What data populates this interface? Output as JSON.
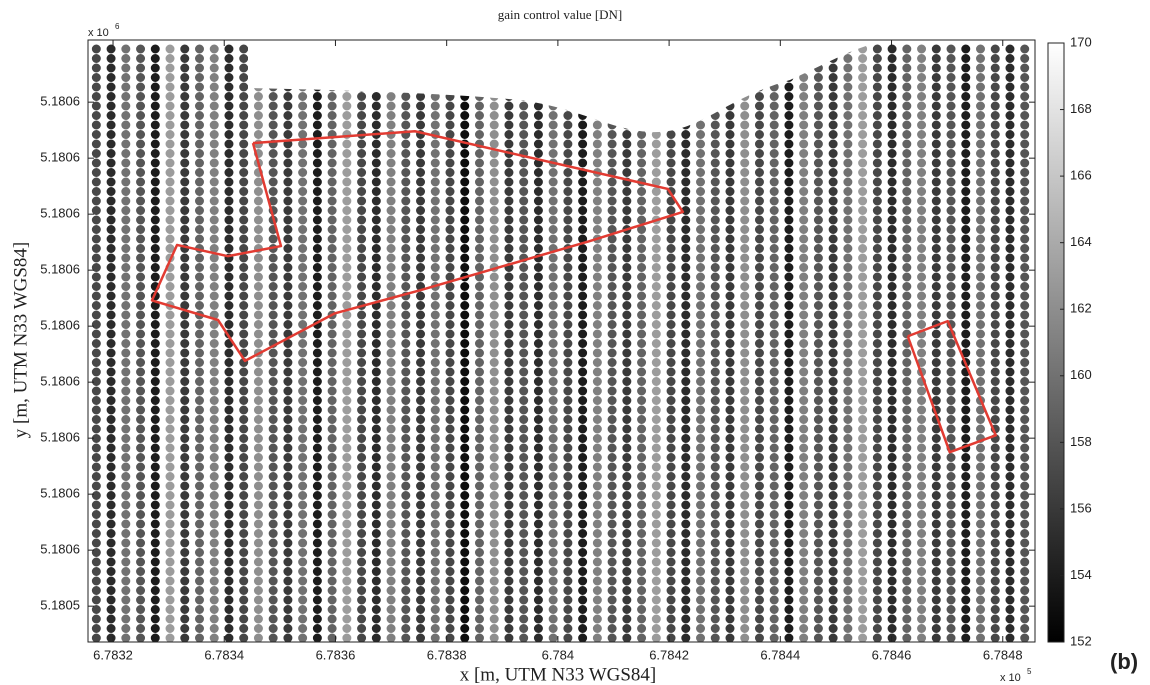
{
  "chart_data": {
    "type": "scatter",
    "title": "gain control value [DN]",
    "xlabel": "x [m, UTM N33 WGS84]",
    "ylabel": "y [m, UTM N33 WGS84]",
    "x_exponent": {
      "base": "x 10",
      "power": "5"
    },
    "y_exponent": {
      "base": "x 10",
      "power": "6"
    },
    "panel_label": "(b)",
    "xlim": [
      6.783155,
      6.784858
    ],
    "ylim": [
      5.1805336,
      5.1806411
    ],
    "xticks": [
      6.7832,
      6.7834,
      6.7836,
      6.7838,
      6.784,
      6.7842,
      6.7844,
      6.7846,
      6.7848
    ],
    "yticks": [
      {
        "value": 5.18054,
        "label": "5.1805"
      },
      {
        "value": 5.18055,
        "label": "5.1806"
      },
      {
        "value": 5.18056,
        "label": "5.1806"
      },
      {
        "value": 5.18057,
        "label": "5.1806"
      },
      {
        "value": 5.18058,
        "label": "5.1806"
      },
      {
        "value": 5.18059,
        "label": "5.1806"
      },
      {
        "value": 5.1806,
        "label": "5.1806"
      },
      {
        "value": 5.18061,
        "label": "5.1806"
      },
      {
        "value": 5.18062,
        "label": "5.1806"
      },
      {
        "value": 5.18063,
        "label": "5.1806"
      }
    ],
    "colormap": "gray",
    "clim": [
      152,
      170
    ],
    "cticks": [
      152,
      154,
      156,
      158,
      160,
      162,
      164,
      166,
      168,
      170
    ],
    "x": [
      6.78317,
      6.7831965,
      6.783223,
      6.7832495,
      6.783276,
      6.7833025,
      6.783329,
      6.7833555,
      6.783382,
      6.7834085,
      6.783435,
      6.7834615,
      6.783488,
      6.7835145,
      6.783541,
      6.7835675,
      6.783594,
      6.7836205,
      6.783647,
      6.7836735,
      6.7837,
      6.7837265,
      6.783753,
      6.7837795,
      6.783806,
      6.7838325,
      6.783859,
      6.7838855,
      6.783912,
      6.7839385,
      6.783965,
      6.7839915,
      6.784018,
      6.7840445,
      6.784071,
      6.7840975,
      6.784124,
      6.7841505,
      6.784177,
      6.7842035,
      6.78423,
      6.7842565,
      6.784283,
      6.7843095,
      6.784336,
      6.7843625,
      6.784389,
      6.7844155,
      6.784442,
      6.7844685,
      6.784495,
      6.7845215,
      6.784548,
      6.7845745,
      6.784601,
      6.7846275,
      6.784654,
      6.7846805,
      6.784707,
      6.7847335,
      6.78476,
      6.7847865,
      6.784813,
      6.7848395
    ],
    "values": [
      157,
      155,
      160,
      158,
      154,
      163,
      156,
      159,
      161,
      155,
      157,
      162,
      158,
      156,
      160,
      154,
      159,
      163,
      157,
      155,
      161,
      158,
      156,
      160,
      157,
      153,
      159,
      162,
      156,
      158,
      155,
      160,
      157,
      154,
      161,
      158,
      156,
      159,
      163,
      157,
      155,
      160,
      158,
      156,
      162,
      157,
      159,
      154,
      161,
      158,
      156,
      160,
      163,
      157,
      155,
      159,
      161,
      156,
      158,
      154,
      160,
      157,
      155,
      158
    ],
    "regions": [
      {
        "color": "#e23b32",
        "x": [
          6.7834517,
          6.7837429,
          6.7841978,
          6.7842247,
          6.7840575,
          6.7837519,
          6.7835991,
          6.7834373,
          6.7833888,
          6.7832701,
          6.7833151,
          6.7834067,
          6.783502,
          6.7834517
        ],
        "y": [
          5.1806227,
          5.1806248,
          5.1806145,
          5.1806104,
          5.1806052,
          5.1805964,
          5.1805923,
          5.1805838,
          5.1805911,
          5.1805946,
          5.1806045,
          5.1806025,
          5.1806043,
          5.1806227
        ]
      },
      {
        "color": "#e23b32",
        "x": [
          6.7846292,
          6.7847011,
          6.7847874,
          6.7847047,
          6.7846292
        ],
        "y": [
          5.1805882,
          5.1805909,
          5.1805705,
          5.1805675,
          5.1805882
        ]
      }
    ]
  }
}
